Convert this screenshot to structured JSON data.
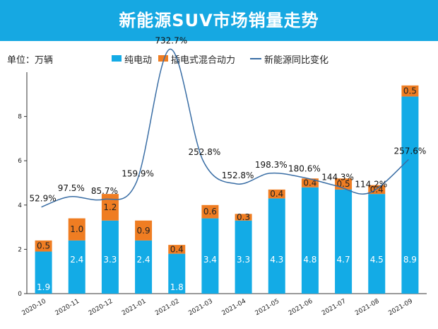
{
  "header": {
    "title": "新能源SUV市场销量走势"
  },
  "unit_label": "单位：万辆",
  "colors": {
    "banner": "#16a8e2",
    "bev": "#13abe6",
    "phev": "#ef7d22",
    "yoy_line": "#3a6ea5"
  },
  "chart_data": {
    "type": "bar",
    "stacked": true,
    "title": "新能源SUV市场销量走势",
    "unit": "万辆",
    "categories": [
      "2020-10",
      "2020-11",
      "2020-12",
      "2021-01",
      "2021-02",
      "2021-03",
      "2021-04",
      "2021-05",
      "2021-06",
      "2021-07",
      "2021-08",
      "2021-09"
    ],
    "series": [
      {
        "name": "纯电动",
        "values": [
          1.9,
          2.4,
          3.3,
          2.4,
          1.8,
          3.4,
          3.3,
          4.3,
          4.8,
          4.7,
          4.5,
          8.9
        ],
        "labels": [
          "1.9",
          "2.4",
          "3.3",
          "2.4",
          "1.8",
          "3.4",
          "3.3",
          "4.3",
          "4.8",
          "4.7",
          "4.5",
          "8.9"
        ]
      },
      {
        "name": "插电式混合动力",
        "values": [
          0.5,
          1.0,
          1.2,
          0.9,
          0.4,
          0.6,
          0.3,
          0.4,
          0.4,
          0.5,
          0.4,
          0.5
        ],
        "labels": [
          "0.5",
          "1.0",
          "1.2",
          "0.9",
          "0.4",
          "0.6",
          "0.3",
          "0.4",
          "0.4",
          "0.5",
          "0.4",
          "0.5"
        ]
      }
    ],
    "line_series": {
      "name": "新能源同比变化",
      "values": [
        52.9,
        97.5,
        85.7,
        159.9,
        732.7,
        252.8,
        152.8,
        198.3,
        180.6,
        144.3,
        114.2,
        257.6
      ],
      "labels": [
        "52.9%",
        "97.5%",
        "85.7%",
        "159.9%",
        "732.7%",
        "252.8%",
        "152.8%",
        "198.3%",
        "180.6%",
        "144.3%",
        "114.2%",
        "257.6%"
      ]
    },
    "y_axis": {
      "min": 0,
      "max": 10,
      "ticks": [
        "0",
        "2",
        "4",
        "6",
        "8"
      ]
    },
    "xlabel": "",
    "ylabel": ""
  }
}
